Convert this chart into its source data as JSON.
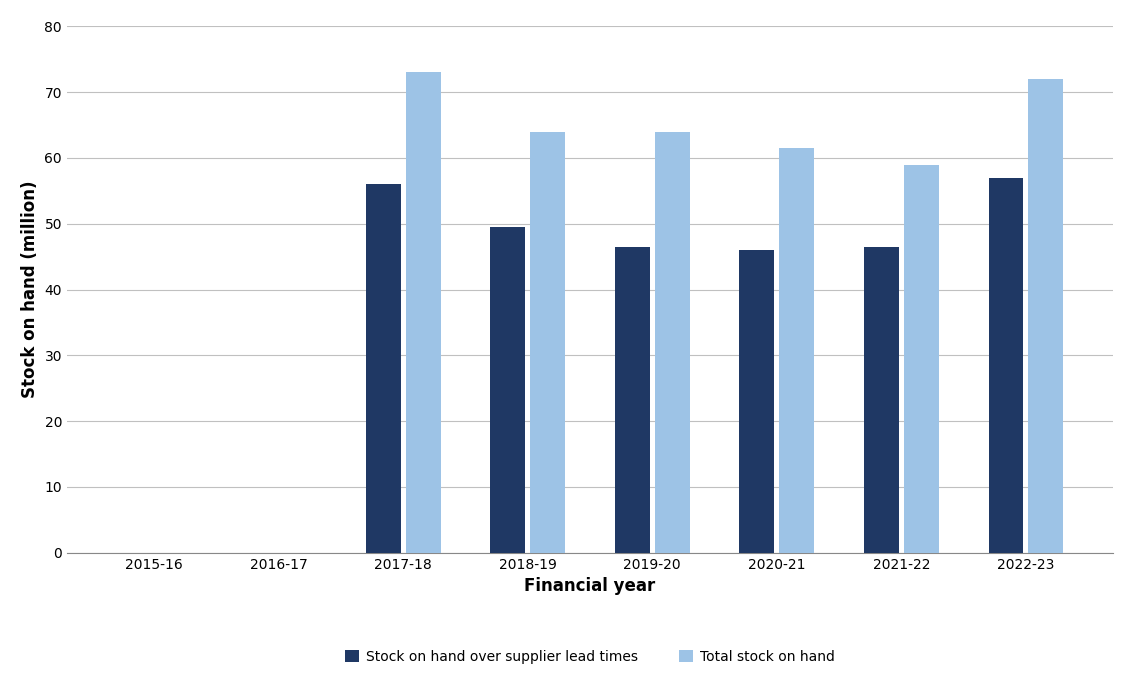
{
  "categories": [
    "2015-16",
    "2016-17",
    "2017-18",
    "2018-19",
    "2019-20",
    "2020-21",
    "2021-22",
    "2022-23"
  ],
  "series1_label": "Stock on hand over supplier lead times",
  "series2_label": "Total stock on hand",
  "series1_values": [
    0,
    0,
    56,
    49.5,
    46.5,
    46,
    46.5,
    57
  ],
  "series2_values": [
    0,
    0,
    73,
    64,
    64,
    61.5,
    59,
    72
  ],
  "series1_color": "#1F3864",
  "series2_color": "#9DC3E6",
  "ylabel": "Stock on hand (million)",
  "xlabel": "Financial year",
  "ylim": [
    0,
    80
  ],
  "yticks": [
    0,
    10,
    20,
    30,
    40,
    50,
    60,
    70,
    80
  ],
  "bar_width": 0.28,
  "bar_gap": 0.04,
  "background_color": "#ffffff",
  "grid_color": "#c0c0c0",
  "axis_label_fontsize": 12,
  "tick_fontsize": 10,
  "legend_fontsize": 10
}
